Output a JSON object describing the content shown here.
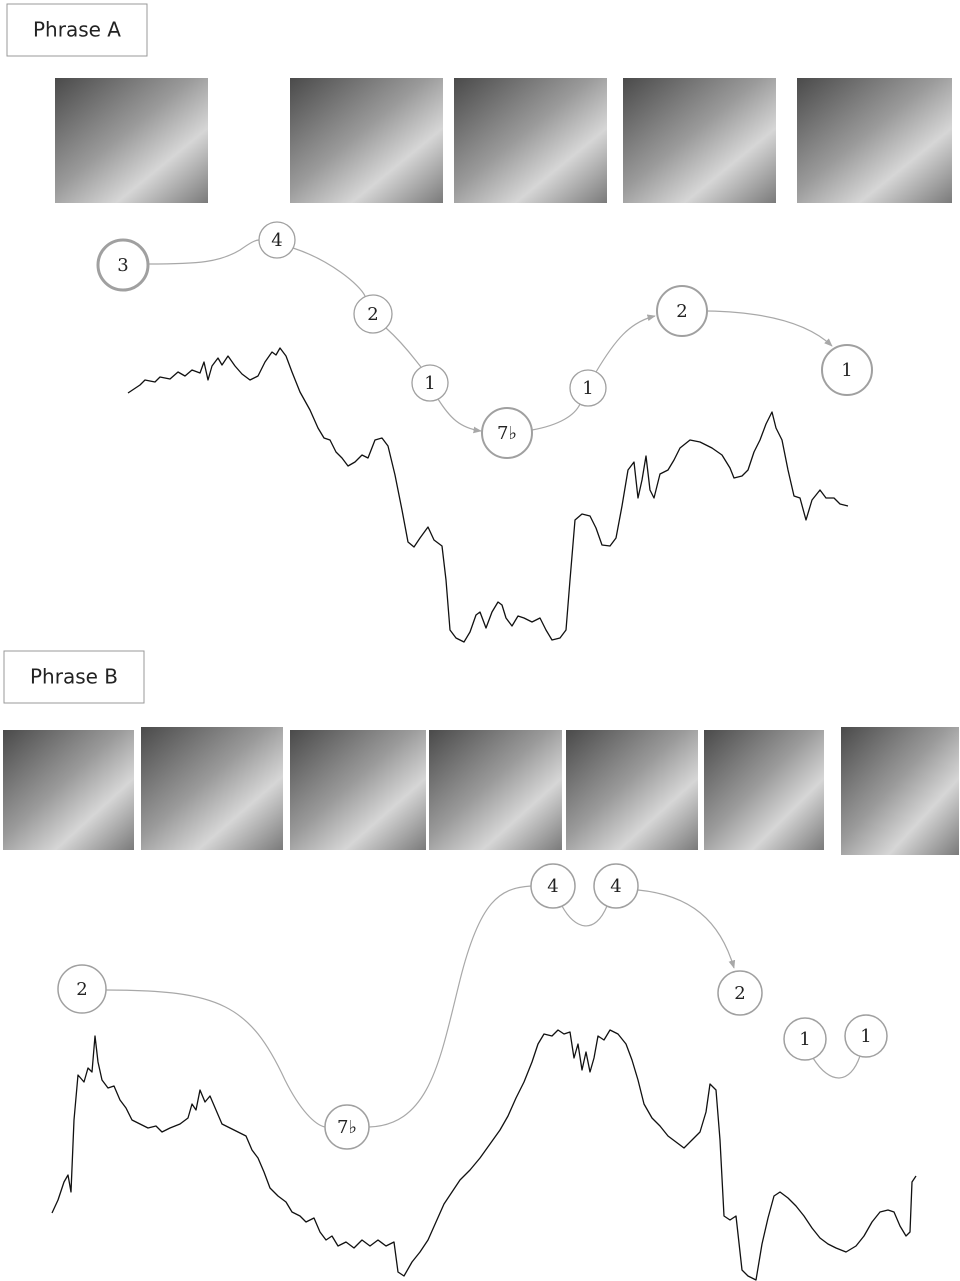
{
  "phrases": [
    {
      "label": "Phrase A",
      "nodes": [
        "3",
        "4",
        "2",
        "1",
        "7♭",
        "1",
        "2",
        "1"
      ]
    },
    {
      "label": "Phrase B",
      "nodes": [
        "2",
        "7♭",
        "4",
        "4",
        "2",
        "1",
        "1"
      ]
    }
  ]
}
